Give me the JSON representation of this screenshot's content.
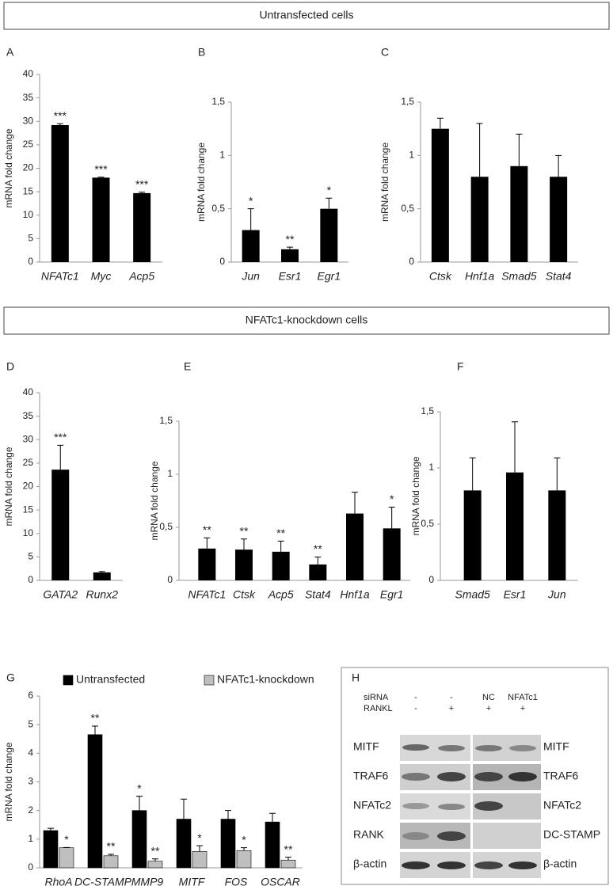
{
  "sections": [
    "Untransfected cells",
    "NFATc1-knockdown cells"
  ],
  "chart_data": [
    {
      "type": "bar",
      "label": "A",
      "ylabel": "mRNA fold change",
      "categories": [
        "NFATc1",
        "Myc",
        "Acp5"
      ],
      "series": [
        {
          "color": "#000000",
          "values": [
            29.2,
            18,
            14.7
          ],
          "errors": [
            0.3,
            0.1,
            0.2
          ],
          "annotations": [
            "***",
            "***",
            "***"
          ]
        }
      ],
      "ylim": [
        0,
        40
      ],
      "yticks": [
        0,
        5,
        10,
        15,
        20,
        25,
        30,
        35,
        40
      ]
    },
    {
      "type": "bar",
      "label": "B",
      "ylabel": "mRNA fold change",
      "categories": [
        "Jun",
        "Esr1",
        "Egr1"
      ],
      "series": [
        {
          "color": "#000000",
          "values": [
            0.3,
            0.12,
            0.5
          ],
          "errors": [
            0.2,
            0.02,
            0.1
          ],
          "annotations": [
            "*",
            "**",
            "*"
          ]
        }
      ],
      "ylim": [
        0,
        1.5
      ],
      "yticks": [
        0,
        {
          "value": 0.5,
          "label": "0,5"
        },
        1,
        {
          "value": 1.5,
          "label": "1,5"
        }
      ]
    },
    {
      "type": "bar",
      "label": "C",
      "ylabel": "mRNA fold change",
      "categories": [
        "Ctsk",
        "Hnf1a",
        "Smad5",
        "Stat4"
      ],
      "series": [
        {
          "color": "#000000",
          "values": [
            1.25,
            0.8,
            0.9,
            0.8
          ],
          "errors": [
            0.1,
            0.5,
            0.3,
            0.2
          ]
        }
      ],
      "ylim": [
        0,
        1.5
      ],
      "yticks": [
        0,
        {
          "value": 0.5,
          "label": "0,5"
        },
        1,
        {
          "value": 1.5,
          "label": "1,5"
        }
      ]
    },
    {
      "type": "bar",
      "label": "D",
      "ylabel": "mRNA fold change",
      "categories": [
        "GATA2",
        "Runx2"
      ],
      "series": [
        {
          "color": "#000000",
          "values": [
            23.6,
            1.7
          ],
          "errors": [
            5.2,
            0.2
          ],
          "annotations": [
            "***",
            null
          ]
        }
      ],
      "ylim": [
        0,
        40
      ],
      "yticks": [
        0,
        5,
        10,
        15,
        20,
        25,
        30,
        35,
        40
      ]
    },
    {
      "type": "bar",
      "label": "E",
      "ylabel": "mRNA fold change",
      "categories": [
        "NFATc1",
        "Ctsk",
        "Acp5",
        "Stat4",
        "Hnf1a",
        "Egr1"
      ],
      "series": [
        {
          "color": "#000000",
          "values": [
            0.3,
            0.29,
            0.27,
            0.15,
            0.63,
            0.49
          ],
          "errors": [
            0.1,
            0.1,
            0.1,
            0.07,
            0.2,
            0.2
          ],
          "annotations": [
            "**",
            "**",
            "**",
            "**",
            null,
            "*"
          ]
        }
      ],
      "ylim": [
        0,
        1.5
      ],
      "yticks": [
        0,
        {
          "value": 0.5,
          "label": "0,5"
        },
        1,
        {
          "value": 1.5,
          "label": "1,5"
        }
      ]
    },
    {
      "type": "bar",
      "label": "F",
      "ylabel": "mRNA fold change",
      "categories": [
        "Smad5",
        "Esr1",
        "Jun"
      ],
      "series": [
        {
          "color": "#000000",
          "values": [
            0.8,
            0.96,
            0.8
          ],
          "errors": [
            0.29,
            0.45,
            0.29
          ]
        }
      ],
      "ylim": [
        0,
        1.5
      ],
      "yticks": [
        0,
        {
          "value": 0.5,
          "label": "0,5"
        },
        1,
        {
          "value": 1.5,
          "label": "1,5"
        }
      ]
    },
    {
      "type": "bar",
      "label": "G",
      "ylabel": "mRNA fold change",
      "legend": "top",
      "categories": [
        "RhoA",
        "DC-STAMP",
        "MMP9",
        "MITF",
        "FOS",
        "OSCAR"
      ],
      "series": [
        {
          "name": "Untransfected",
          "color": "#000000",
          "values": [
            1.3,
            4.65,
            2.0,
            1.7,
            1.7,
            1.6
          ],
          "errors": [
            0.08,
            0.3,
            0.5,
            0.7,
            0.3,
            0.3
          ],
          "annotations": [
            null,
            "**",
            "*",
            null,
            null,
            null
          ]
        },
        {
          "name": "NFATc1-knockdown",
          "color": "#bfbfbf",
          "values": [
            0.7,
            0.42,
            0.23,
            0.57,
            0.6,
            0.27
          ],
          "errors": [
            0.01,
            0.05,
            0.08,
            0.2,
            0.1,
            0.1
          ],
          "annotations": [
            "*",
            "**",
            "**",
            "*",
            "*",
            "**"
          ]
        }
      ],
      "ylim": [
        0,
        6
      ],
      "yticks": [
        0,
        1,
        2,
        3,
        4,
        5,
        6
      ]
    }
  ],
  "blot": {
    "label": "H",
    "conditions": [
      {
        "name": "siRNA",
        "values": [
          "-",
          "-",
          "NC",
          "NFATc1"
        ]
      },
      {
        "name": "RANKL",
        "values": [
          "-",
          "+",
          "+",
          "+"
        ]
      }
    ],
    "left_labels": [
      "MITF",
      "TRAF6",
      "NFATc2",
      "RANK",
      "β-actin"
    ],
    "right_labels": [
      "MITF",
      "TRAF6",
      "NFATc2",
      "DC-STAMP",
      "β-actin"
    ]
  }
}
